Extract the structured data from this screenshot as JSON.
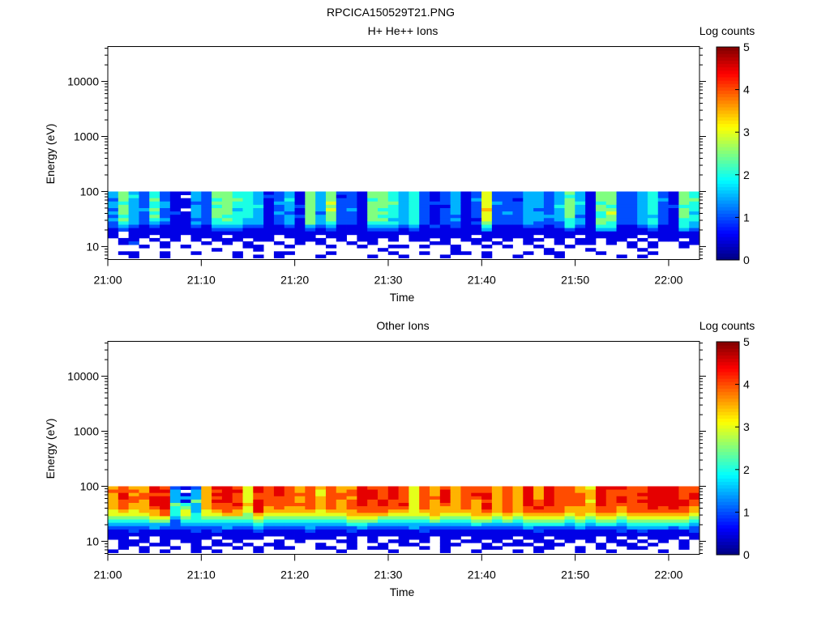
{
  "title": "RPCICA150529T21.PNG",
  "chart_data": [
    {
      "type": "heatmap",
      "title": "H+ He++ Ions",
      "xlabel": "Time",
      "ylabel": "Energy (eV)",
      "colorbar_label": "Log counts",
      "colorbar_range": [
        0,
        5
      ],
      "colorbar_ticks": [
        "0",
        "1",
        "2",
        "3",
        "4",
        "5"
      ],
      "colormap": "jet",
      "x_ticks": [
        "21:00",
        "21:10",
        "21:20",
        "21:30",
        "21:40",
        "21:50",
        "22:00"
      ],
      "x_range_minutes_after_21_00": [
        0,
        63.3
      ],
      "y_scale": "log",
      "y_range_eV": [
        5.8,
        43000
      ],
      "y_ticks": [
        "10",
        "100",
        "1000",
        "10000"
      ],
      "energy_bins_eV": [
        100,
        6.2
      ],
      "cell_encoding": "each char = log counts x2 (digit/2); '.' = no counts; rows run from highest to lowest energy, columns are time bins",
      "rows": [
        "3532421132 5544312315 3522155434 2123126222 3323531552 2342154",
        "3542421.32 5544322315 3512155434 2123126222 3323431552 2342154",
        "2532521132 4554312415 3522145434 2123136221 3323531552 2343155",
        "3432431122 5544313315 3622155534 2223126322 3323541452 2342154",
        "3532431132 4544412325 3522155434 2113126222 3324531542 2342244",
        "2533521.32 5534312315 3623154434 2123127222 3223531552 2342154",
        "3532422132 5544313215 2522155434 2123126232 3323531462 2342153",
        "2432521132 5444312325 3522154434 2122126222 3333521452 2332154",
        "3532431122 4543312315 3522155334 2123116222 3323431552 2342144",
        "2432321132 4443312315 3422144434 2122125222 3222431542 2342143",
        "2321211121 3332211213 2311133323 1212114111 2212421441 1231143",
        "1211111111 2221111112 1211122212 1111113111 1111211331 1121132",
        "1.11111111 1111111111 1111111111 1111111111 1111111111 1111111",
        "1.11.11.11 1.1111.111 .11.1111.1 11111.1111 1.111.1111 1.11111",
        ".11.1.1.1. 111.11..11 1.1.11.1.1 1.1.111.1. 11.1.11.11 .1.11.1",
        ".12..1...1 .1.1..1.1. 1..1.1.... .11..1.1.. 1..1.11.1. 1.1..11",
        "...1.1.1.. ...11..1.. .1..1..11. 1..1..1.1. .1..1..... 1.1..1.",
        ".......... 1...1..... ......1... ...1...... ..1...1... .1.....",
        ".11..1..1. ..1...11.. .1.....1.. 1..11.1... 1.11...1.. ..1....",
        "..1..1.... ..1.1.1... 1....1..1. ..1...1..1 ...1.....1 .1....."
      ]
    },
    {
      "type": "heatmap",
      "title": "Other Ions",
      "xlabel": "Time",
      "ylabel": "Energy (eV)",
      "colorbar_label": "Log counts",
      "colorbar_range": [
        0,
        5
      ],
      "colorbar_ticks": [
        "0",
        "1",
        "2",
        "3",
        "4",
        "5"
      ],
      "colormap": "jet",
      "x_ticks": [
        "21:00",
        "21:10",
        "21:20",
        "21:30",
        "21:40",
        "21:50",
        "22:00"
      ],
      "x_range_minutes_after_21_00": [
        0,
        63.3
      ],
      "y_scale": "log",
      "y_range_eV": [
        5.8,
        43000
      ],
      "y_ticks": [
        "10",
        "100",
        "1000",
        "10000"
      ],
      "energy_bins_eV": [
        100,
        6.2
      ],
      "cell_encoding": "each char = log counts x2 (digit/2); '.' = no counts; rows run from highest to lowest energy, columns are time bins",
      "rows": [
        "7877982127 9986989878 7877988986 8787888787 9798876999 8899988",
        "8887993.37 8996989878 6878998986 8797888787 9798877988 8899988",
        "7978883137 9986889888 6888998986 8797899787 9798887988 8999989",
        "7988993337 8986888878 7887998986 8897889787 9798887989 8899989",
        "7887993157 9986988878 7878989886 8797878787 9898886989 8999998",
        "7877995437 8897988888 7878989896 8787879787 9898887988 8899998",
        "7877894537 8886978778 7878888886 8777879787 8988777887 8898987",
        "6767784636 7876977777 6777888776 7777778787 8888777887 8888887",
        "6666784646 6775766666 6667777666 6766677676 7777676776 7777776",
        "5555663545 5555655555 5556665555 5655566565 6666565665 6666665",
        "4444552444 4444544444 4445554444 4544455454 5555454554 5555554",
        "3333332333 3333433333 3334433333 3333343333 4444343443 4444443",
        "2222322222 2322322223 2222322223 2222222222 3222232222 3333232",
        "1121111121 2111211112 1112111111 2111111111 1211111112 1211112",
        "1111111111 1111111111 1111111111 1111111111 1111111111 1111111",
        "11.1.11111 .1111..111 11.1.1..11 1.11.1111. 11.1111.1. 1.111.1",
        ".111.1.11. 1.1...1.1. ..11.1.11. 1.1.11.1.1 .11.1.1.11 .1.1.1.",
        ".11.11..1. 11.1.11... 1..1..1.11 ..11..1.11 1.11...1.1 1.1..1.",
        ".1.1..1.11 ..1.1.11.. 11.1.11... 1.1...11.. .11..1.1.. 11...1.",
        "1..1.1..1. 1...1..... ..1....1.. ..1..1...1 .1...1..1. ...1..."
      ]
    }
  ]
}
